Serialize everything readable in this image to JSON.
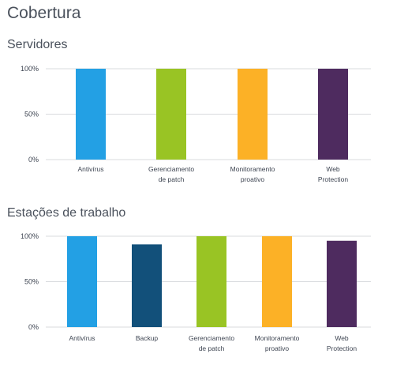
{
  "page": {
    "title": "Cobertura"
  },
  "sections": {
    "servers": {
      "title": "Servidores"
    },
    "workstations": {
      "title": "Estações de trabalho"
    }
  },
  "colors": {
    "antivirus": "#23a0e4",
    "backup": "#12507a",
    "patch": "#99c424",
    "monitoring": "#fcb126",
    "web": "#4e2b5f"
  },
  "chart_data": [
    {
      "type": "bar",
      "title": "Servidores",
      "xlabel": "",
      "ylabel": "",
      "ylim": [
        0,
        100
      ],
      "yticks": [
        "100%",
        "50%",
        "0%"
      ],
      "grid": true,
      "legend": "none",
      "categories": [
        [
          "Antivírus"
        ],
        [
          "Gerenciamento",
          "de patch"
        ],
        [
          "Monitoramento",
          "proativo"
        ],
        [
          "Web",
          "Protection"
        ]
      ],
      "values": [
        100,
        100,
        100,
        100
      ],
      "colors": [
        "#23a0e4",
        "#99c424",
        "#fcb126",
        "#4e2b5f"
      ]
    },
    {
      "type": "bar",
      "title": "Estações de trabalho",
      "xlabel": "",
      "ylabel": "",
      "ylim": [
        0,
        100
      ],
      "yticks": [
        "100%",
        "50%",
        "0%"
      ],
      "grid": true,
      "legend": "none",
      "categories": [
        [
          "Antivírus"
        ],
        [
          "Backup"
        ],
        [
          "Gerenciamento",
          "de patch"
        ],
        [
          "Monitoramento",
          "proativo"
        ],
        [
          "Web",
          "Protection"
        ]
      ],
      "values": [
        100,
        91,
        100,
        100,
        95
      ],
      "colors": [
        "#23a0e4",
        "#12507a",
        "#99c424",
        "#fcb126",
        "#4e2b5f"
      ]
    }
  ]
}
